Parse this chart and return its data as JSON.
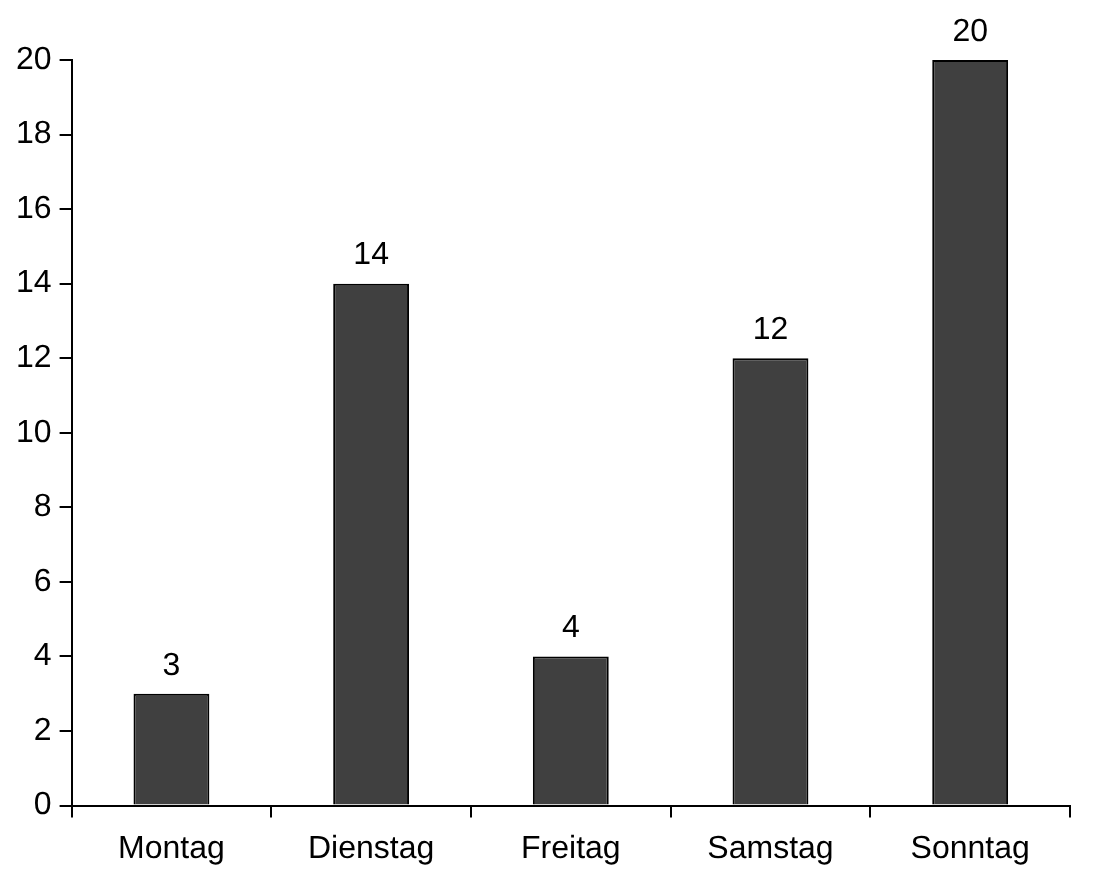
{
  "chart_data": {
    "type": "bar",
    "categories": [
      "Montag",
      "Dienstag",
      "Freitag",
      "Samstag",
      "Sonntag"
    ],
    "values": [
      3,
      14,
      4,
      12,
      20
    ],
    "color": "#404040",
    "ylim": [
      0,
      20
    ],
    "yticks": [
      0,
      2,
      4,
      6,
      8,
      10,
      12,
      14,
      16,
      18,
      20
    ],
    "grid": false,
    "legend": false,
    "data_labels": true
  }
}
